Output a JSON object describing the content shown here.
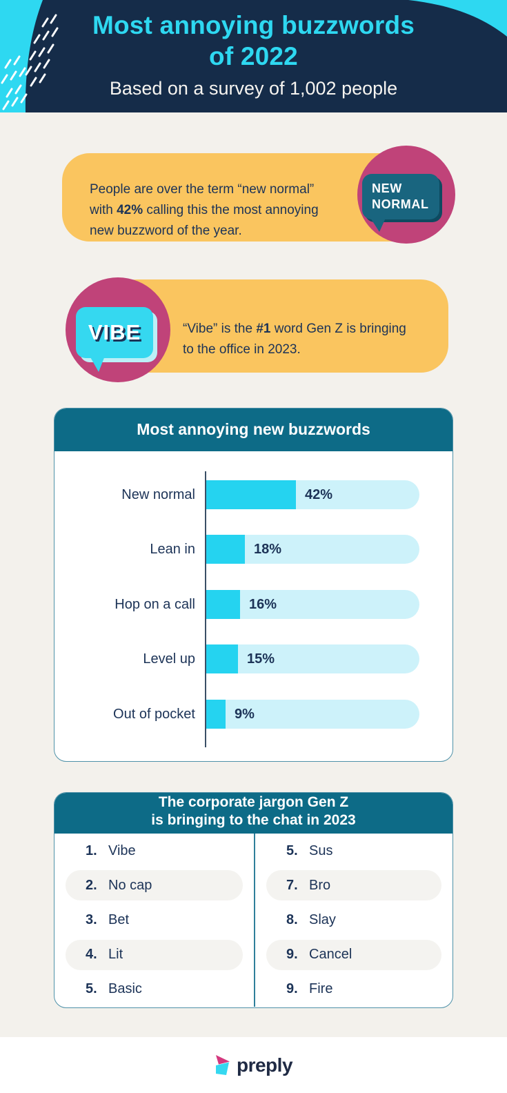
{
  "header": {
    "title_line1": "Most annoying buzzwords",
    "title_line2": "of 2022",
    "subtitle": "Based on a survey of 1,002 people"
  },
  "fact_cards": [
    {
      "text_before": "People are over the term “new normal” with ",
      "text_bold": "42%",
      "text_after": " calling this the most annoying new buzzword of the year.",
      "badge_icon": "speech-bubble",
      "badge_lines": [
        "NEW",
        "NORMAL"
      ]
    },
    {
      "text_before": "“Vibe” is the ",
      "text_bold": "#1",
      "text_after": " word Gen Z is bringing to the office in 2023.",
      "badge_icon": "speech-bubble",
      "badge_lines": [
        "VIBE"
      ]
    }
  ],
  "chart_data": {
    "type": "bar",
    "orientation": "horizontal",
    "title": "Most annoying new buzzwords",
    "categories": [
      "New normal",
      "Lean in",
      "Hop on a call",
      "Level up",
      "Out of pocket"
    ],
    "values": [
      42,
      18,
      16,
      15,
      9
    ],
    "value_labels": [
      "42%",
      "18%",
      "16%",
      "15%",
      "9%"
    ],
    "xlabel": "",
    "ylabel": "",
    "xlim": [
      0,
      100
    ],
    "grid": false,
    "legend": false,
    "track_full_scale_percent": 100
  },
  "jargon_table": {
    "title_line1": "The corporate jargon Gen Z",
    "title_line2": "is bringing to the chat in 2023",
    "left_column": [
      {
        "rank": "1.",
        "word": "Vibe"
      },
      {
        "rank": "2.",
        "word": "No cap"
      },
      {
        "rank": "3.",
        "word": "Bet"
      },
      {
        "rank": "4.",
        "word": "Lit"
      },
      {
        "rank": "5.",
        "word": "Basic"
      }
    ],
    "right_column": [
      {
        "rank": "5.",
        "word": "Sus"
      },
      {
        "rank": "7.",
        "word": "Bro"
      },
      {
        "rank": "8.",
        "word": "Slay"
      },
      {
        "rank": "9.",
        "word": "Cancel"
      },
      {
        "rank": "9.",
        "word": "Fire"
      }
    ]
  },
  "footer": {
    "brand": "preply",
    "logo_icon": "preply-play-mark"
  },
  "colors": {
    "page_background": "#F3F1EC",
    "header_navy": "#152C49",
    "accent_cyan": "#2ED8F1",
    "card_yellow": "#FAC55F",
    "badge_pink": "#C04379",
    "panel_teal": "#0D6B87",
    "bubble_teal": "#19657F",
    "bar_fill": "#25D3F0",
    "bar_track": "#CDF2FA",
    "text_navy": "#1C3357",
    "footer_background": "#FFFFFF"
  }
}
